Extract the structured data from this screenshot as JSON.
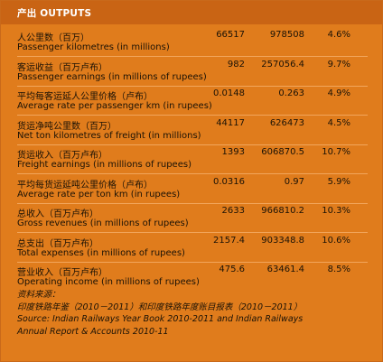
{
  "header": {
    "title": "产出 OUTPUTS"
  },
  "rows": [
    {
      "zh": "人公里数（百万）",
      "en": "Passenger kilometres (in millions)",
      "v1": "66517",
      "v2": "978508",
      "v3": "4.6%"
    },
    {
      "zh": "客运收益（百万卢布）",
      "en": "Passenger earnings (in millions of rupees)",
      "v1": "982",
      "v2": "257056.4",
      "v3": "9.7%"
    },
    {
      "zh": "平均每客运延人公里价格（卢布）",
      "en": "Average rate per passenger km (in rupees)",
      "v1": "0.0148",
      "v2": "0.263",
      "v3": "4.9%"
    },
    {
      "zh": "货运净吨公里数（百万）",
      "en": "Net ton kilometres of freight (in millions)",
      "v1": "44117",
      "v2": "626473",
      "v3": "4.5%"
    },
    {
      "zh": "货运收入（百万卢布）",
      "en": "Freight earnings (in millions of rupees)",
      "v1": "1393",
      "v2": "606870.5",
      "v3": "10.7%"
    },
    {
      "zh": "平均每货运延吨公里价格（卢布）",
      "en": "Average rate per ton km (in rupees)",
      "v1": "0.0316",
      "v2": "0.97",
      "v3": "5.9%"
    },
    {
      "zh": "总收入（百万卢布）",
      "en": "Gross revenues (in millions of rupees)",
      "v1": "2633",
      "v2": "966810.2",
      "v3": "10.3%"
    },
    {
      "zh": "总支出（百万卢布）",
      "en": "Total expenses (in millions of rupees)",
      "v1": "2157.4",
      "v2": "903348.8",
      "v3": "10.6%"
    },
    {
      "zh": "营业收入（百万卢布）",
      "en": "Operating income (in millions of rupees)",
      "v1": "475.6",
      "v2": "63461.4",
      "v3": "8.5%"
    }
  ],
  "source": {
    "label_zh": "资料来源：",
    "ref_zh": "印度铁路年鉴（2010－2011）和印度铁路年度账目报表（2010－2011）",
    "ref_en_line1": "Source: Indian Railways Year Book 2010-2011 and Indian Railways",
    "ref_en_line2": "Annual Report & Accounts 2010-11"
  },
  "colors": {
    "panel": "#e07c1c",
    "header": "#c96414",
    "text": "#1a1206",
    "header_text": "#ffffff"
  }
}
